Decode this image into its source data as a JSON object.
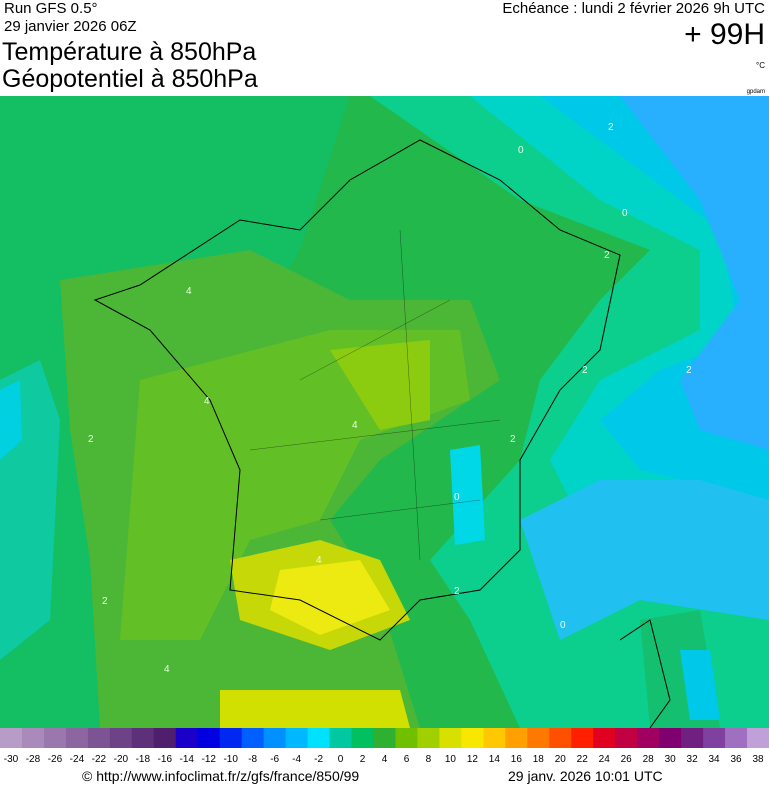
{
  "header": {
    "run": "Run GFS 0.5°",
    "run_date": "29 janvier 2026 06Z",
    "title_1": "Température à 850hPa",
    "title_2": "Géopotentiel à 850hPa",
    "valid_time": "Echéance : lundi 2 février 2026 9h UTC",
    "lead_time": "+ 99H",
    "unit": "°C",
    "unit_2": "gpdam"
  },
  "map": {
    "contour_labels": [
      "2",
      "0",
      "0",
      "2",
      "4",
      "4",
      "2",
      "2",
      "4",
      "2",
      "2",
      "0",
      "2",
      "0",
      "4",
      "2",
      "4"
    ]
  },
  "colorbar": {
    "labels": [
      -30,
      -28,
      -26,
      -24,
      -22,
      -20,
      -18,
      -16,
      -14,
      -12,
      -10,
      -8,
      -6,
      -4,
      -2,
      0,
      2,
      4,
      6,
      8,
      10,
      12,
      14,
      16,
      18,
      20,
      22,
      24,
      26,
      28,
      30,
      32,
      34,
      36,
      38
    ],
    "colors": [
      "#b89cc8",
      "#a98abb",
      "#9a78ae",
      "#8b66a1",
      "#7c5494",
      "#6d4287",
      "#5e307a",
      "#4f1e6d",
      "#1a00c8",
      "#0000e0",
      "#0028f0",
      "#0060ff",
      "#0090ff",
      "#00b8ff",
      "#00e0ff",
      "#00c8a0",
      "#00c060",
      "#30b030",
      "#70c000",
      "#a0d000",
      "#d8e000",
      "#f8e800",
      "#ffc800",
      "#ffa000",
      "#ff7800",
      "#ff5000",
      "#ff2000",
      "#e00020",
      "#c00040",
      "#a00060",
      "#800070",
      "#702080",
      "#8040a0",
      "#a070c0",
      "#c0a0d8"
    ]
  },
  "footer": {
    "url": "© http://www.infoclimat.fr/z/gfs/france/850/99",
    "generated": "29 janv. 2026 10:01 UTC"
  }
}
